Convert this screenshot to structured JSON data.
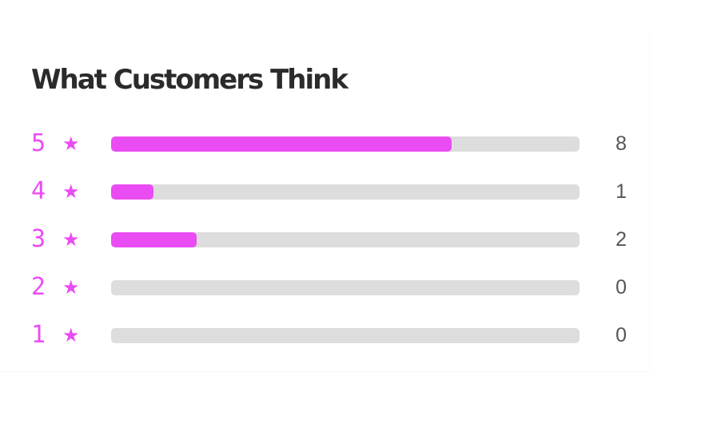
{
  "title": "What Customers Think",
  "colors": {
    "accent": "#ea4cf4",
    "track": "#dddddd",
    "title": "#2b2b2b",
    "count": "#555555"
  },
  "star_icon": "star-icon",
  "ratings": [
    {
      "stars": "5",
      "star_glyph": "★",
      "count": "8",
      "fill_fraction": 0.727
    },
    {
      "stars": "4",
      "star_glyph": "★",
      "count": "1",
      "fill_fraction": 0.091
    },
    {
      "stars": "3",
      "star_glyph": "★",
      "count": "2",
      "fill_fraction": 0.182
    },
    {
      "stars": "2",
      "star_glyph": "★",
      "count": "0",
      "fill_fraction": 0
    },
    {
      "stars": "1",
      "star_glyph": "★",
      "count": "0",
      "fill_fraction": 0
    }
  ]
}
